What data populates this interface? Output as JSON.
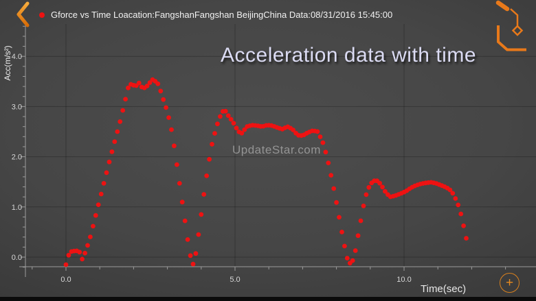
{
  "legend": {
    "text": "Gforce vs Time Loacation:FangshanFangshan BeijingChina Data:08/31/2016 15:45:00",
    "marker_color": "#ee1212"
  },
  "title": "Acceleration data with time",
  "watermark": "UpdateStar.com",
  "controls": {
    "plus_label": "+"
  },
  "colors": {
    "accent_orange": "#ed7d16",
    "series_red": "#ee1212",
    "title_color": "#dbdbf3",
    "axis_color": "#9c9c9c",
    "grid_color": "rgba(0,0,0,0.25)",
    "tick_label_color": "#d8d8d8"
  },
  "chart_data": {
    "type": "scatter",
    "title": "Gforce vs Time",
    "xlabel": "Time(sec)",
    "ylabel": "Acc(m/s²)",
    "xlim": [
      -1.2,
      13.9
    ],
    "ylim": [
      -0.45,
      4.65
    ],
    "grid": true,
    "x_ticks": [
      {
        "value": 0,
        "label": "0.0"
      },
      {
        "value": 5,
        "label": "5.0"
      },
      {
        "value": 10,
        "label": "10.0"
      }
    ],
    "y_ticks": [
      {
        "value": 0,
        "label": "0.0"
      },
      {
        "value": 1,
        "label": "1.0"
      },
      {
        "value": 2,
        "label": "2.0"
      },
      {
        "value": 3,
        "label": "3.0"
      },
      {
        "value": 4,
        "label": "4.0"
      }
    ],
    "x_minor_step": 1.0,
    "y_minor_step": 0.2,
    "sample_dt": 0.08,
    "series": [
      {
        "name": "Gforce",
        "color": "#ee1212",
        "points": [
          [
            0,
            -0.15
          ],
          [
            0.06,
            0.02
          ],
          [
            0.16,
            0.11
          ],
          [
            0.3,
            0.13
          ],
          [
            0.4,
            0.1
          ],
          [
            0.48,
            -0.04
          ],
          [
            0.56,
            0.08
          ],
          [
            0.7,
            0.35
          ],
          [
            1.0,
            1.15
          ],
          [
            1.3,
            1.95
          ],
          [
            1.6,
            2.7
          ],
          [
            1.85,
            3.4
          ],
          [
            1.95,
            3.46
          ],
          [
            2.05,
            3.39
          ],
          [
            2.15,
            3.48
          ],
          [
            2.25,
            3.38
          ],
          [
            2.35,
            3.37
          ],
          [
            2.45,
            3.45
          ],
          [
            2.55,
            3.54
          ],
          [
            2.65,
            3.5
          ],
          [
            2.74,
            3.44
          ],
          [
            2.85,
            3.2
          ],
          [
            3.0,
            2.9
          ],
          [
            3.15,
            2.45
          ],
          [
            3.3,
            1.75
          ],
          [
            3.45,
            1.05
          ],
          [
            3.6,
            0.35
          ],
          [
            3.7,
            -0.05
          ],
          [
            3.76,
            -0.14
          ],
          [
            3.82,
            -0.02
          ],
          [
            3.9,
            0.35
          ],
          [
            4.0,
            0.85
          ],
          [
            4.1,
            1.35
          ],
          [
            4.2,
            1.8
          ],
          [
            4.32,
            2.25
          ],
          [
            4.45,
            2.6
          ],
          [
            4.57,
            2.82
          ],
          [
            4.68,
            2.95
          ],
          [
            4.8,
            2.82
          ],
          [
            4.95,
            2.68
          ],
          [
            5.1,
            2.5
          ],
          [
            5.2,
            2.47
          ],
          [
            5.35,
            2.6
          ],
          [
            5.5,
            2.63
          ],
          [
            5.65,
            2.62
          ],
          [
            5.8,
            2.6
          ],
          [
            5.95,
            2.63
          ],
          [
            6.1,
            2.62
          ],
          [
            6.25,
            2.58
          ],
          [
            6.4,
            2.55
          ],
          [
            6.55,
            2.6
          ],
          [
            6.7,
            2.55
          ],
          [
            6.85,
            2.43
          ],
          [
            7.0,
            2.42
          ],
          [
            7.15,
            2.48
          ],
          [
            7.3,
            2.52
          ],
          [
            7.45,
            2.5
          ],
          [
            7.6,
            2.28
          ],
          [
            7.72,
            2.0
          ],
          [
            7.85,
            1.6
          ],
          [
            7.97,
            1.2
          ],
          [
            8.1,
            0.72
          ],
          [
            8.22,
            0.28
          ],
          [
            8.33,
            -0.05
          ],
          [
            8.42,
            -0.14
          ],
          [
            8.52,
            -0.02
          ],
          [
            8.6,
            0.28
          ],
          [
            8.7,
            0.65
          ],
          [
            8.8,
            1.02
          ],
          [
            8.9,
            1.3
          ],
          [
            9.0,
            1.45
          ],
          [
            9.1,
            1.52
          ],
          [
            9.2,
            1.52
          ],
          [
            9.3,
            1.46
          ],
          [
            9.45,
            1.3
          ],
          [
            9.58,
            1.2
          ],
          [
            9.72,
            1.22
          ],
          [
            9.88,
            1.26
          ],
          [
            10.05,
            1.31
          ],
          [
            10.2,
            1.38
          ],
          [
            10.35,
            1.43
          ],
          [
            10.5,
            1.46
          ],
          [
            10.65,
            1.48
          ],
          [
            10.8,
            1.49
          ],
          [
            10.95,
            1.47
          ],
          [
            11.1,
            1.43
          ],
          [
            11.25,
            1.39
          ],
          [
            11.4,
            1.32
          ],
          [
            11.5,
            1.2
          ],
          [
            11.6,
            1.04
          ],
          [
            11.68,
            0.86
          ],
          [
            11.75,
            0.66
          ],
          [
            11.8,
            0.48
          ],
          [
            11.85,
            0.35
          ]
        ]
      }
    ]
  }
}
